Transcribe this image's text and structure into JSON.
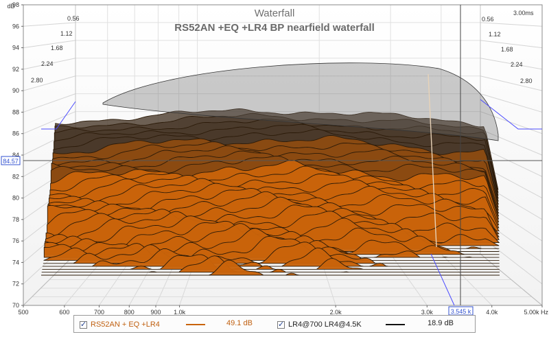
{
  "chart_data": {
    "type": "waterfall",
    "title": "Waterfall",
    "subtitle": "RS52AN +EQ +LR4 BP nearfield waterfall",
    "y_unit": "dB",
    "x_unit": "Hz",
    "ylim": [
      70,
      98
    ],
    "y_ticks": [
      "70",
      "72",
      "74",
      "76",
      "78",
      "80",
      "82",
      "84",
      "86",
      "88",
      "90",
      "92",
      "94",
      "96",
      "98"
    ],
    "xlim": [
      500,
      5000
    ],
    "x_ticks": [
      {
        "value": 500,
        "label": "500"
      },
      {
        "value": 600,
        "label": "600"
      },
      {
        "value": 700,
        "label": "700"
      },
      {
        "value": 800,
        "label": "800"
      },
      {
        "value": 900,
        "label": "900"
      },
      {
        "value": 1000,
        "label": "1.0k"
      },
      {
        "value": 2000,
        "label": "2.0k"
      },
      {
        "value": 3000,
        "label": "3.0k"
      },
      {
        "value": 4000,
        "label": "4.0k"
      },
      {
        "value": 5000,
        "label": "5.00k Hz"
      }
    ],
    "time_unit": "ms",
    "time_ticks_left": [
      "0.56",
      "1.12",
      "1.68",
      "2.24",
      "2.80"
    ],
    "time_ticks_right": [
      "3.00ms",
      "0.56",
      "1.12",
      "1.68",
      "2.24",
      "2.80"
    ],
    "cursor": {
      "x_label": "3.545 k",
      "y_label": "84.57"
    },
    "series": [
      {
        "name": "RS52AN + EQ +LR4",
        "range": "49.1 dB",
        "color": "#c8630a",
        "checked": true
      },
      {
        "name": "LR4@700 LR4@4.5K",
        "range": "18.9 dB",
        "color": "#111111",
        "checked": true
      }
    ],
    "grid": true
  },
  "legend_text_colors": {
    "series0": "#c06010",
    "default": "#222222"
  }
}
